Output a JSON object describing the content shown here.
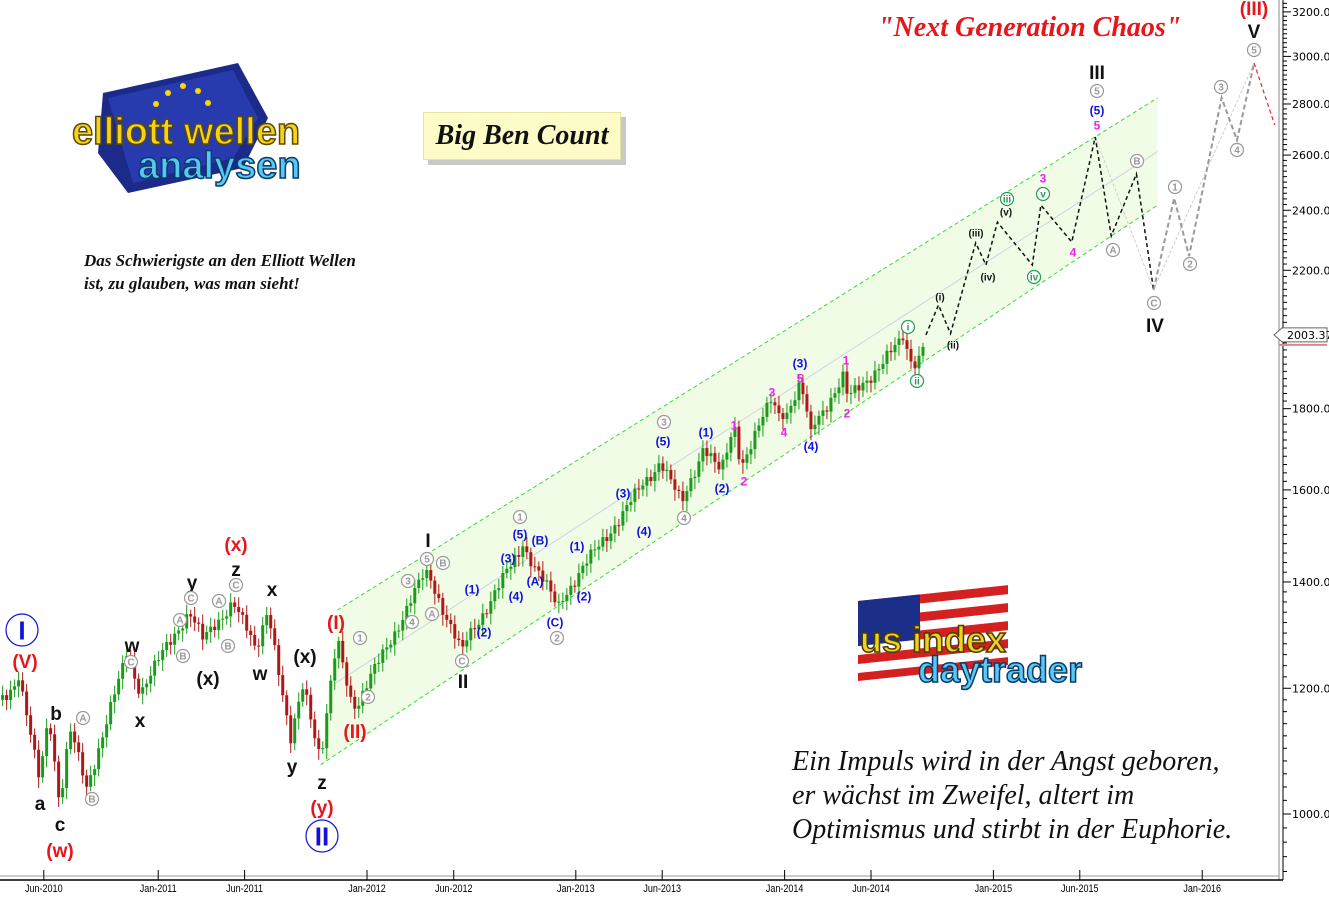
{
  "header": {
    "title": "\"Next Generation Chaos\"",
    "count_label": "Big Ben Count",
    "quote_top": "Das Schwierigste an den Elliott Wellen ist, zu glauben, was man sieht!",
    "quote_bottom_lines": [
      "Ein Impuls wird in der Angst geboren,",
      "er wächst im Zweifel, altert im",
      "Optimismus und stirbt in der Euphorie."
    ]
  },
  "logos": {
    "left": {
      "line1": "elliott wellen",
      "line2": "analysen"
    },
    "right": {
      "line1": "us index",
      "line2": "daytrader"
    }
  },
  "colors": {
    "up_candle": "#1a9b1a",
    "down_candle": "#b01818",
    "channel_line": "#33dd33",
    "channel_fill": "#eefbe0",
    "projection_primary": "#111111",
    "projection_alternate": "#9a9a9a",
    "projection_final": "#ee2222",
    "title": "#e8151b"
  },
  "chart_data": {
    "type": "candlestick",
    "interval": "weekly",
    "title": "\"Next Generation Chaos\"",
    "y_axis": {
      "scale": "log",
      "range": [
        870,
        3250
      ],
      "ticks": [
        "1000.00",
        "1200.00",
        "1400.00",
        "1600.00",
        "1800.00",
        "2000.00",
        "2200.00",
        "2400.00",
        "2600.00",
        "2800.00",
        "3000.00",
        "3200.00"
      ],
      "tick_values": [
        1000,
        1200,
        1400,
        1600,
        1800,
        2000,
        2200,
        2400,
        2600,
        2800,
        3000,
        3200
      ],
      "position": "right"
    },
    "x_axis": {
      "range": [
        "2010-03-28",
        "2016-04-30"
      ],
      "ticks": [
        "Jun-2010",
        "Jan-2011",
        "Jun-2011",
        "Jan-2012",
        "Jun-2012",
        "Jan-2013",
        "Jun-2013",
        "Jan-2014",
        "Jun-2014",
        "Jan-2015",
        "Jun-2015",
        "Jan-2016"
      ],
      "tick_dates": [
        "2010-06-15",
        "2011-01-01",
        "2011-06-01",
        "2012-01-01",
        "2012-06-01",
        "2013-01-01",
        "2013-06-01",
        "2014-01-01",
        "2014-06-01",
        "2015-01-01",
        "2015-06-01",
        "2016-01-01"
      ]
    },
    "grid": false,
    "last_price": "2003.37",
    "price_pivots": [
      [
        "2010-03-28",
        1180
      ],
      [
        "2010-05-03",
        1215
      ],
      [
        "2010-06-07",
        1050
      ],
      [
        "2010-06-24",
        1160
      ],
      [
        "2010-07-13",
        1013
      ],
      [
        "2010-07-31",
        1130
      ],
      [
        "2010-08-29",
        1040
      ],
      [
        "2010-11-10",
        1268
      ],
      [
        "2010-11-28",
        1190
      ],
      [
        "2011-02-24",
        1344
      ],
      [
        "2011-03-21",
        1285
      ],
      [
        "2011-05-12",
        1363
      ],
      [
        "2011-06-21",
        1265
      ],
      [
        "2011-07-12",
        1354
      ],
      [
        "2011-08-20",
        1105
      ],
      [
        "2011-09-12",
        1214
      ],
      [
        "2011-10-12",
        1081
      ],
      [
        "2011-11-10",
        1287
      ],
      [
        "2011-12-09",
        1162
      ],
      [
        "2012-04-15",
        1425
      ],
      [
        "2012-06-13",
        1268
      ],
      [
        "2012-10-01",
        1476
      ],
      [
        "2012-11-28",
        1354
      ],
      [
        "2013-05-30",
        1670
      ],
      [
        "2013-07-05",
        1565
      ],
      [
        "2013-08-13",
        1707
      ],
      [
        "2013-09-12",
        1636
      ],
      [
        "2013-10-05",
        1760
      ],
      [
        "2013-10-17",
        1660
      ],
      [
        "2013-12-10",
        1823
      ],
      [
        "2013-12-28",
        1770
      ],
      [
        "2014-01-29",
        1863
      ],
      [
        "2014-02-15",
        1745
      ],
      [
        "2014-04-16",
        1890
      ],
      [
        "2014-04-21",
        1823
      ],
      [
        "2014-07-27",
        1988
      ],
      [
        "2014-08-17",
        1908
      ],
      [
        "2014-09-05",
        2003.37
      ]
    ],
    "channel": {
      "upper": [
        [
          "2011-11-10",
          1344
        ],
        [
          "2015-10-15",
          2825
        ]
      ],
      "lower": [
        [
          "2011-10-12",
          1074
        ],
        [
          "2015-10-15",
          2418
        ]
      ]
    },
    "projection_primary": [
      [
        "2014-09-05",
        2003
      ],
      [
        "2014-09-27",
        2092
      ],
      [
        "2014-10-18",
        2007
      ],
      [
        "2014-12-01",
        2289
      ],
      [
        "2014-12-19",
        2217
      ],
      [
        "2015-01-08",
        2359
      ],
      [
        "2015-03-10",
        2217
      ],
      [
        "2015-03-25",
        2418
      ],
      [
        "2015-05-18",
        2292
      ],
      [
        "2015-06-28",
        2669
      ],
      [
        "2015-07-26",
        2312
      ],
      [
        "2015-09-08",
        2530
      ],
      [
        "2015-10-08",
        2138
      ]
    ],
    "projection_alternate": [
      [
        "2015-10-08",
        2138
      ],
      [
        "2015-11-13",
        2443
      ],
      [
        "2015-12-09",
        2246
      ],
      [
        "2016-02-04",
        2825
      ],
      [
        "2016-03-02",
        2657
      ],
      [
        "2016-04-01",
        2971
      ]
    ],
    "projection_final": [
      [
        "2016-04-01",
        2971
      ],
      [
        "2016-05-07",
        2716
      ]
    ],
    "annotations": [
      {
        "text": "I",
        "color": "#1010e0",
        "style": "big-circle"
      },
      {
        "text": "(V)",
        "color": "#e8151b",
        "style": "large"
      },
      {
        "text": "b",
        "color": "#111",
        "style": "large"
      },
      {
        "text": "a",
        "color": "#111",
        "style": "large"
      },
      {
        "text": "c",
        "color": "#111",
        "style": "large"
      },
      {
        "text": "(w)",
        "color": "#e8151b",
        "style": "large"
      },
      {
        "text": "A",
        "color": "#999",
        "style": "circle"
      },
      {
        "text": "B",
        "color": "#999",
        "style": "circle"
      },
      {
        "text": "w",
        "color": "#111",
        "style": "large"
      },
      {
        "text": "C",
        "color": "#999",
        "style": "circle"
      },
      {
        "text": "x",
        "color": "#111",
        "style": "large"
      },
      {
        "text": "A",
        "color": "#999",
        "style": "circle"
      },
      {
        "text": "B",
        "color": "#999",
        "style": "circle"
      },
      {
        "text": "y",
        "color": "#111",
        "style": "large"
      },
      {
        "text": "C",
        "color": "#999",
        "style": "circle"
      },
      {
        "text": "(x)",
        "color": "#111",
        "style": "large"
      },
      {
        "text": "A",
        "color": "#999",
        "style": "circle"
      },
      {
        "text": "B",
        "color": "#999",
        "style": "circle"
      },
      {
        "text": "z",
        "color": "#111",
        "style": "large"
      },
      {
        "text": "C",
        "color": "#999",
        "style": "circle"
      },
      {
        "text": "(x)",
        "color": "#e8151b",
        "style": "large"
      },
      {
        "text": "x",
        "color": "#111",
        "style": "large"
      },
      {
        "text": "w",
        "color": "#111",
        "style": "large"
      },
      {
        "text": "(x)",
        "color": "#111",
        "style": "large"
      },
      {
        "text": "y",
        "color": "#111",
        "style": "large"
      },
      {
        "text": "z",
        "color": "#111",
        "style": "large"
      },
      {
        "text": "(y)",
        "color": "#e8151b",
        "style": "large"
      },
      {
        "text": "II",
        "color": "#1010e0",
        "style": "big-circle"
      },
      {
        "text": "(I)",
        "color": "#e8151b",
        "style": "large"
      },
      {
        "text": "(II)",
        "color": "#e8151b",
        "style": "large"
      },
      {
        "text": "1",
        "color": "#999",
        "style": "circle"
      },
      {
        "text": "2",
        "color": "#999",
        "style": "circle"
      },
      {
        "text": "3",
        "color": "#999",
        "style": "circle"
      },
      {
        "text": "4",
        "color": "#999",
        "style": "circle"
      },
      {
        "text": "5",
        "color": "#999",
        "style": "circle"
      },
      {
        "text": "B",
        "color": "#999",
        "style": "circle"
      },
      {
        "text": "A",
        "color": "#999",
        "style": "circle"
      },
      {
        "text": "I",
        "color": "#111",
        "style": "large"
      },
      {
        "text": "C",
        "color": "#999",
        "style": "circle"
      },
      {
        "text": "II",
        "color": "#111",
        "style": "large"
      },
      {
        "text": "(1)",
        "color": "#1010e0",
        "style": "small"
      },
      {
        "text": "(2)",
        "color": "#1010e0",
        "style": "small"
      },
      {
        "text": "(3)",
        "color": "#1010e0",
        "style": "small"
      },
      {
        "text": "(4)",
        "color": "#1010e0",
        "style": "small"
      },
      {
        "text": "(5)",
        "color": "#1010e0",
        "style": "small"
      },
      {
        "text": "1",
        "color": "#999",
        "style": "circle"
      },
      {
        "text": "(B)",
        "color": "#1010e0",
        "style": "small"
      },
      {
        "text": "(A)",
        "color": "#1010e0",
        "style": "small"
      },
      {
        "text": "(C)",
        "color": "#1010e0",
        "style": "small"
      },
      {
        "text": "2",
        "color": "#999",
        "style": "circle"
      },
      {
        "text": "(1)",
        "color": "#1010e0",
        "style": "small"
      },
      {
        "text": "(2)",
        "color": "#1010e0",
        "style": "small"
      },
      {
        "text": "(3)",
        "color": "#1010e0",
        "style": "small"
      },
      {
        "text": "(4)",
        "color": "#1010e0",
        "style": "small"
      },
      {
        "text": "(5)",
        "color": "#1010e0",
        "style": "small"
      },
      {
        "text": "3",
        "color": "#999",
        "style": "circle"
      },
      {
        "text": "4",
        "color": "#999",
        "style": "circle"
      },
      {
        "text": "(1)",
        "color": "#1010e0",
        "style": "small"
      },
      {
        "text": "(2)",
        "color": "#1010e0",
        "style": "small"
      },
      {
        "text": "1",
        "color": "#ee22ee",
        "style": "small"
      },
      {
        "text": "2",
        "color": "#ee22ee",
        "style": "small"
      },
      {
        "text": "3",
        "color": "#ee22ee",
        "style": "small"
      },
      {
        "text": "4",
        "color": "#ee22ee",
        "style": "small"
      },
      {
        "text": "(3)",
        "color": "#1010e0",
        "style": "small"
      },
      {
        "text": "5",
        "color": "#ee22ee",
        "style": "small"
      },
      {
        "text": "(4)",
        "color": "#1010e0",
        "style": "small"
      },
      {
        "text": "1",
        "color": "#ee22ee",
        "style": "small"
      },
      {
        "text": "2",
        "color": "#ee22ee",
        "style": "small"
      },
      {
        "text": "i",
        "color": "#2a9a5a",
        "style": "circle"
      },
      {
        "text": "ii",
        "color": "#2a9a5a",
        "style": "circle"
      },
      {
        "text": "(i)",
        "color": "#111",
        "style": "tiny"
      },
      {
        "text": "(ii)",
        "color": "#111",
        "style": "tiny"
      },
      {
        "text": "(iii)",
        "color": "#111",
        "style": "tiny"
      },
      {
        "text": "(iv)",
        "color": "#111",
        "style": "tiny"
      },
      {
        "text": "(v)",
        "color": "#111",
        "style": "tiny"
      },
      {
        "text": "iii",
        "color": "#2a9a5a",
        "style": "circle"
      },
      {
        "text": "iv",
        "color": "#2a9a5a",
        "style": "circle"
      },
      {
        "text": "v",
        "color": "#2a9a5a",
        "style": "circle"
      },
      {
        "text": "3",
        "color": "#ee22ee",
        "style": "small"
      },
      {
        "text": "4",
        "color": "#ee22ee",
        "style": "small"
      },
      {
        "text": "5",
        "color": "#ee22ee",
        "style": "small"
      },
      {
        "text": "(5)",
        "color": "#1010e0",
        "style": "small"
      },
      {
        "text": "5",
        "color": "#999",
        "style": "circle"
      },
      {
        "text": "III",
        "color": "#111",
        "style": "large"
      },
      {
        "text": "A",
        "color": "#999",
        "style": "circle"
      },
      {
        "text": "B",
        "color": "#999",
        "style": "circle"
      },
      {
        "text": "C",
        "color": "#999",
        "style": "circle"
      },
      {
        "text": "IV",
        "color": "#111",
        "style": "large"
      },
      {
        "text": "1",
        "color": "#999",
        "style": "circle"
      },
      {
        "text": "2",
        "color": "#999",
        "style": "circle"
      },
      {
        "text": "3",
        "color": "#999",
        "style": "circle"
      },
      {
        "text": "4",
        "color": "#999",
        "style": "circle"
      },
      {
        "text": "5",
        "color": "#999",
        "style": "circle"
      },
      {
        "text": "V",
        "color": "#111",
        "style": "large"
      },
      {
        "text": "(III)",
        "color": "#e8151b",
        "style": "large"
      }
    ]
  }
}
